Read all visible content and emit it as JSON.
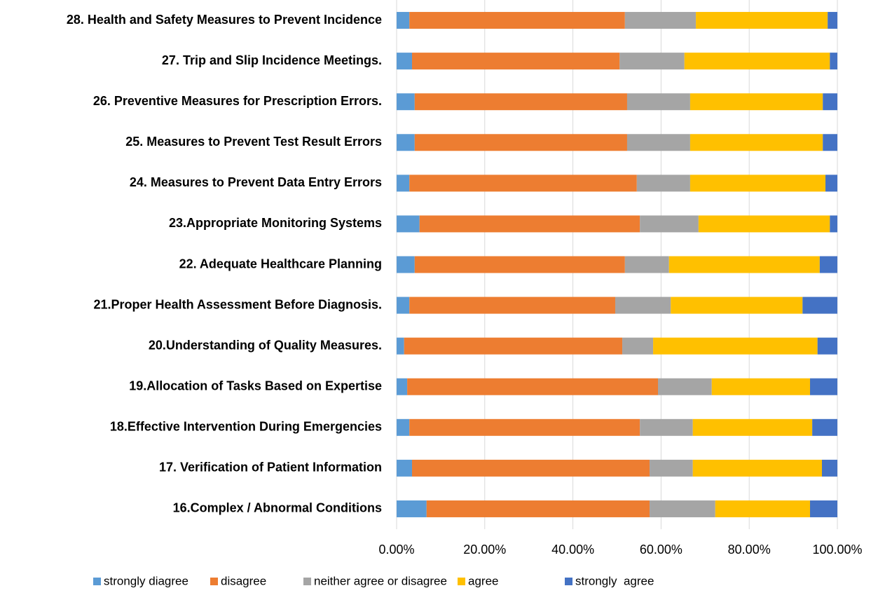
{
  "chart_data": {
    "type": "stacked-barh",
    "categories": [
      "28. Health and Safety Measures to Prevent Incidence",
      "27. Trip and Slip Incidence Meetings.",
      "26. Preventive Measures for Prescription Errors.",
      "25. Measures to Prevent Test Result Errors",
      "24. Measures to Prevent Data Entry Errors",
      "23.Appropriate Monitoring Systems",
      "22. Adequate Healthcare Planning",
      "21.Proper Health Assessment Before Diagnosis.",
      "20.Understanding of Quality Measures.",
      "19.Allocation of Tasks Based on Expertise",
      "18.Effective Intervention During Emergencies",
      "17. Verification of Patient Information",
      "16.Complex / Abnormal Conditions"
    ],
    "series": [
      {
        "name": "strongly diagree",
        "color": "#5b9bd5",
        "values": [
          2.9,
          3.5,
          4.1,
          4.1,
          2.9,
          5.2,
          4.1,
          2.9,
          1.7,
          2.4,
          2.9,
          3.5,
          6.8
        ]
      },
      {
        "name": "disagree",
        "color": "#ed7d31",
        "values": [
          48.9,
          47.1,
          48.2,
          48.2,
          51.6,
          50.0,
          47.7,
          46.7,
          49.5,
          56.9,
          52.3,
          53.9,
          50.6
        ]
      },
      {
        "name": "neither agree or disagree",
        "color": "#a5a5a5",
        "values": [
          16.1,
          14.7,
          14.3,
          14.3,
          12.1,
          13.3,
          10.0,
          12.6,
          7.0,
          12.2,
          12.0,
          9.8,
          14.9
        ]
      },
      {
        "name": "agree",
        "color": "#ffc000",
        "values": [
          29.9,
          33.0,
          30.1,
          30.1,
          30.7,
          29.8,
          34.2,
          29.9,
          37.3,
          22.3,
          27.1,
          29.3,
          21.5
        ]
      },
      {
        "name": "strongly  agree",
        "color": "#4472c4",
        "values": [
          2.2,
          1.7,
          3.3,
          3.3,
          2.7,
          1.7,
          4.0,
          7.9,
          4.5,
          6.2,
          5.7,
          3.5,
          6.2
        ]
      }
    ],
    "xlim": [
      0,
      100
    ],
    "xticks": [
      {
        "value": 0,
        "label": "0.00%"
      },
      {
        "value": 20,
        "label": "20.00%"
      },
      {
        "value": 40,
        "label": "40.00%"
      },
      {
        "value": 60,
        "label": "60.00%"
      },
      {
        "value": 80,
        "label": "80.00%"
      },
      {
        "value": 100,
        "label": "100.00%"
      }
    ],
    "grid": true,
    "legend": "bottom"
  }
}
